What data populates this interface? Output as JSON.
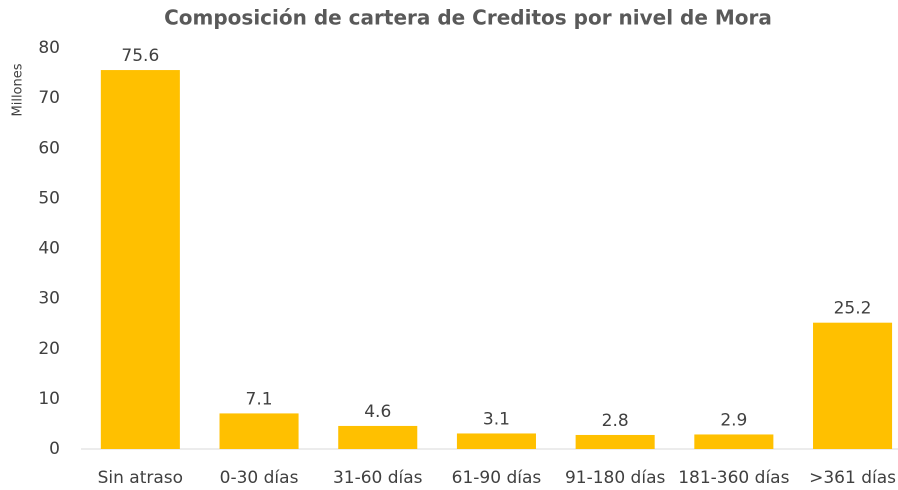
{
  "chart_data": {
    "type": "bar",
    "title": "Composición de cartera de Creditos por nivel de Mora",
    "y_label": "Millones",
    "categories": [
      "Sin atraso",
      "0-30 días",
      "31-60 días",
      "61-90 días",
      "91-180 días",
      "181-360 días",
      ">361 días"
    ],
    "values": [
      75.6,
      7.1,
      4.6,
      3.1,
      2.8,
      2.9,
      25.2
    ],
    "color": "#FFC000",
    "ylim": [
      0,
      80
    ],
    "yticks": [
      0,
      10,
      20,
      30,
      40,
      50,
      60,
      70,
      80
    ],
    "grid": false
  }
}
